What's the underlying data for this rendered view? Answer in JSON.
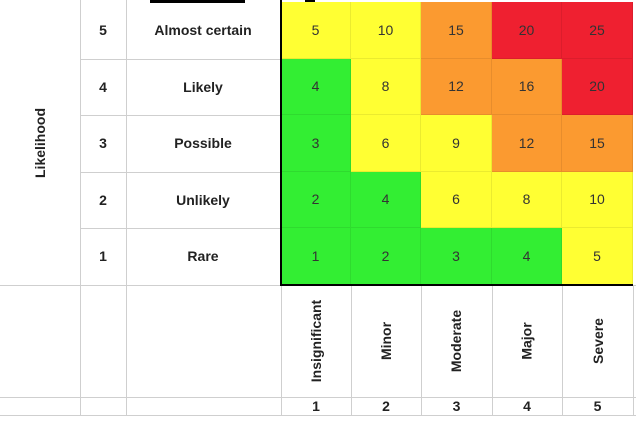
{
  "axis": {
    "y_label": "Likelihood"
  },
  "likelihood_rows": [
    {
      "rank": "5",
      "label": "Almost certain"
    },
    {
      "rank": "4",
      "label": "Likely"
    },
    {
      "rank": "3",
      "label": "Possible"
    },
    {
      "rank": "2",
      "label": "Unlikely"
    },
    {
      "rank": "1",
      "label": "Rare"
    }
  ],
  "consequence_cols": [
    {
      "rank": "1",
      "label": "Insignificant"
    },
    {
      "rank": "2",
      "label": "Minor"
    },
    {
      "rank": "3",
      "label": "Moderate"
    },
    {
      "rank": "4",
      "label": "Major"
    },
    {
      "rank": "5",
      "label": "Severe"
    }
  ],
  "matrix": [
    [
      "5",
      "10",
      "15",
      "20",
      "25"
    ],
    [
      "4",
      "8",
      "12",
      "16",
      "20"
    ],
    [
      "3",
      "6",
      "9",
      "12",
      "15"
    ],
    [
      "2",
      "4",
      "6",
      "8",
      "10"
    ],
    [
      "1",
      "2",
      "3",
      "4",
      "5"
    ]
  ],
  "colors": {
    "green": "#33ee33",
    "yellow": "#ffff33",
    "orange": "#fb9a30",
    "red": "#ef2030"
  },
  "cell_colors": [
    [
      "yellow",
      "yellow",
      "orange",
      "red",
      "red"
    ],
    [
      "green",
      "yellow",
      "orange",
      "orange",
      "red"
    ],
    [
      "green",
      "yellow",
      "yellow",
      "orange",
      "orange"
    ],
    [
      "green",
      "green",
      "yellow",
      "yellow",
      "yellow"
    ],
    [
      "green",
      "green",
      "green",
      "green",
      "yellow"
    ]
  ]
}
